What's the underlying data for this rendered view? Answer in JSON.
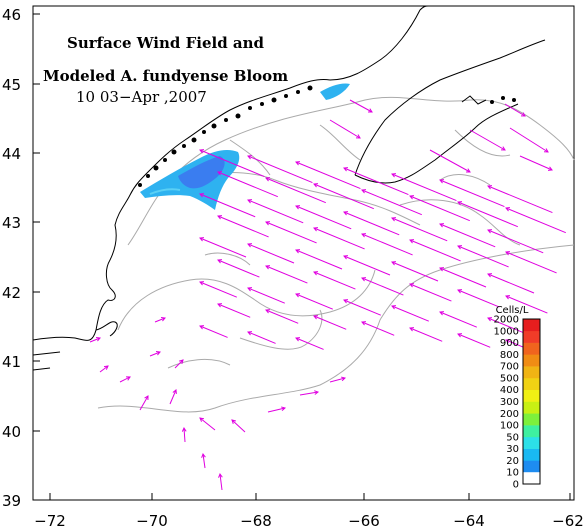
{
  "map": {
    "title_line1": "Surface Wind Field and",
    "title_line2": "Modeled A. fundyense Bloom",
    "title_line3": "10  03−Apr ,2007",
    "x_ticks": [
      "−72",
      "−70",
      "−68",
      "−66",
      "−64",
      "−62"
    ],
    "y_ticks": [
      "46",
      "45",
      "44",
      "43",
      "42",
      "41",
      "40",
      "39"
    ],
    "lon_range": [
      -72.5,
      -62
    ],
    "lat_range": [
      39,
      46.2
    ],
    "colors": {
      "coastline": "#000000",
      "isobath": "#aaaaaa",
      "wind_vector": "#e000e0",
      "bloom_high": "#3a7df0",
      "bloom_mid": "#2eb2f0",
      "bloom_low": "#5ad0f5"
    }
  },
  "legend": {
    "title": "Cells/L",
    "levels": [
      "0",
      "10",
      "20",
      "30",
      "50",
      "100",
      "200",
      "300",
      "400",
      "500",
      "700",
      "800",
      "900",
      "1000",
      "2000"
    ],
    "colors": [
      "#ffffff",
      "#1e4fe6",
      "#1e8cf0",
      "#19b9f2",
      "#2ce0e8",
      "#3ef0a0",
      "#7df03c",
      "#c8f014",
      "#f0f014",
      "#f0d214",
      "#f0b414",
      "#f08c14",
      "#f0641e",
      "#f03c28",
      "#e61e1e"
    ]
  }
}
